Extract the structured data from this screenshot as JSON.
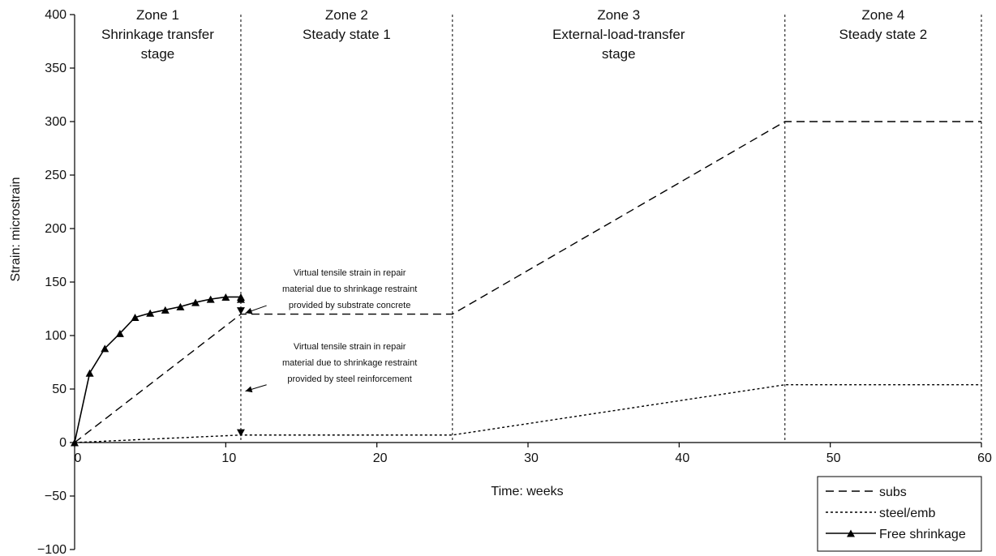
{
  "chart_data": {
    "type": "line",
    "xlabel": "Time: weeks",
    "ylabel": "Strain: microstrain",
    "xlim": [
      0,
      60
    ],
    "ylim": [
      -100,
      400
    ],
    "x_ticks": [
      "0",
      "10",
      "20",
      "30",
      "40",
      "50",
      "60"
    ],
    "y_ticks": [
      "−100",
      "−50",
      "0",
      "50",
      "100",
      "150",
      "200",
      "250",
      "300",
      "350",
      "400"
    ],
    "x_tick_values": [
      0,
      10,
      20,
      30,
      40,
      50,
      60
    ],
    "y_tick_values": [
      -100,
      -50,
      0,
      50,
      100,
      150,
      200,
      250,
      300,
      350,
      400
    ],
    "grid": false,
    "legend_position": "bottom-right",
    "zone_boundaries": [
      11,
      25,
      47,
      60
    ],
    "zones": [
      {
        "lines": [
          "Zone 1",
          "Shrinkage transfer",
          "stage"
        ],
        "x_center": 5.5
      },
      {
        "lines": [
          "Zone 2",
          "Steady state 1"
        ],
        "x_center": 18
      },
      {
        "lines": [
          "Zone 3",
          "External-load-transfer",
          "stage"
        ],
        "x_center": 36
      },
      {
        "lines": [
          "Zone 4",
          "Steady state 2"
        ],
        "x_center": 53.5
      }
    ],
    "series": [
      {
        "name": "subs",
        "style": "dashed",
        "x": [
          0,
          11,
          25,
          47,
          60
        ],
        "y": [
          0,
          120,
          120,
          300,
          300
        ]
      },
      {
        "name": "steel/emb",
        "style": "dotted",
        "x": [
          0,
          11,
          25,
          47,
          60
        ],
        "y": [
          0,
          7,
          7,
          54,
          54
        ]
      },
      {
        "name": "Free shrinkage",
        "style": "solid-triangle",
        "x": [
          0,
          1,
          2,
          3,
          4,
          5,
          6,
          7,
          8,
          9,
          10,
          11,
          11
        ],
        "y": [
          0,
          65,
          88,
          102,
          117,
          121,
          124,
          127,
          131,
          134,
          136,
          136,
          134
        ]
      }
    ],
    "annotations": [
      {
        "lines": [
          "Virtual tensile strain in repair",
          "material due to shrinkage restraint",
          "provided by substrate concrete"
        ],
        "x_center": 18.2,
        "y_top": 156,
        "arrow_from": [
          12.7,
          128
        ],
        "arrow_to": [
          11.3,
          121
        ],
        "marker": [
          11,
          123
        ]
      },
      {
        "lines": [
          "Virtual tensile strain in repair",
          "material due to shrinkage restraint",
          "provided by steel reinforcement"
        ],
        "x_center": 18.2,
        "y_top": 87,
        "arrow_from": [
          12.7,
          54
        ],
        "arrow_to": [
          11.3,
          48
        ],
        "marker": [
          11,
          9
        ]
      }
    ]
  }
}
